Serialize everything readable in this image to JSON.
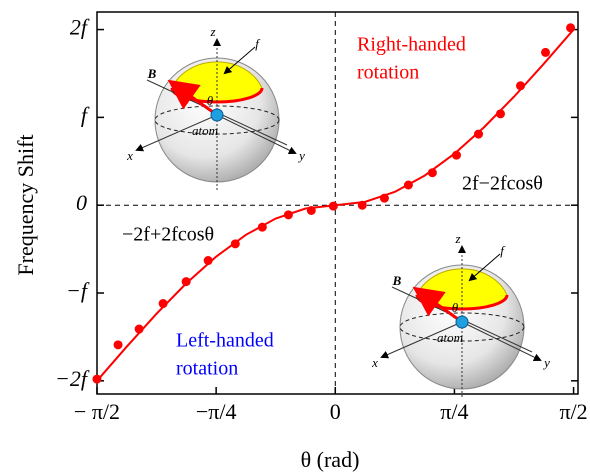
{
  "chart_data": {
    "type": "line",
    "xlabel": "θ (rad)",
    "ylabel": "Frequency Shift",
    "xlim": [
      -1.5708,
      1.6
    ],
    "ylim": [
      -2.15,
      2.2
    ],
    "xticks": [
      {
        "value": -1.5708,
        "label": "− π/2"
      },
      {
        "value": -0.7854,
        "label": "−π/4"
      },
      0,
      {
        "value": 0.7854,
        "label": "π/4"
      },
      {
        "value": 1.5708,
        "label": "π/2"
      }
    ],
    "yticks": [
      {
        "value": -2,
        "label": "−2f"
      },
      {
        "value": -1,
        "label": "−f"
      },
      0,
      {
        "value": 1,
        "label": "f"
      },
      {
        "value": 2,
        "label": "2f"
      }
    ],
    "series": [
      {
        "mode": "line",
        "color": "#ff0000",
        "x": [
          -1.5708,
          -1.3744,
          -1.1781,
          -0.9817,
          -0.7854,
          -0.589,
          -0.3927,
          -0.1963,
          0,
          0.1963,
          0.3927,
          0.589,
          0.7854,
          0.9817,
          1.1781,
          1.3744,
          1.5708
        ],
        "values": [
          -2,
          -1.61,
          -1.235,
          -0.889,
          -0.586,
          -0.337,
          -0.152,
          -0.038,
          0,
          0.038,
          0.152,
          0.337,
          0.586,
          0.889,
          1.235,
          1.61,
          2
        ]
      },
      {
        "mode": "markers",
        "color": "#ff0000",
        "x": [
          -1.571,
          -1.432,
          -1.293,
          -1.135,
          -0.983,
          -0.838,
          -0.659,
          -0.481,
          -0.309,
          -0.158,
          -0.013,
          0.178,
          0.324,
          0.482,
          0.64,
          0.799,
          0.944,
          1.089,
          1.221,
          1.386,
          1.551
        ],
        "values": [
          -1.98,
          -1.59,
          -1.41,
          -1.12,
          -0.87,
          -0.63,
          -0.44,
          -0.25,
          -0.11,
          -0.06,
          -0.01,
          0,
          0.08,
          0.23,
          0.37,
          0.57,
          0.81,
          1.04,
          1.36,
          1.74,
          2.02
        ]
      }
    ],
    "annotations": [
      {
        "text": "Right-handed",
        "color": "#ff0000"
      },
      {
        "text": "rotation",
        "color": "#ff0000"
      },
      {
        "text": "Left-handed",
        "color": "#0000ff"
      },
      {
        "text": "rotation",
        "color": "#0000ff"
      },
      {
        "text": "2f−2fcosθ",
        "color": "#000000"
      },
      {
        "text": "−2f+2fcosθ",
        "color": "#000000"
      }
    ],
    "insets": [
      {
        "labels": [
          "z",
          "f",
          "B",
          "θ",
          "atom",
          "x",
          "y"
        ]
      },
      {
        "labels": [
          "z",
          "f",
          "B",
          "θ",
          "atom",
          "x",
          "y"
        ]
      }
    ]
  }
}
